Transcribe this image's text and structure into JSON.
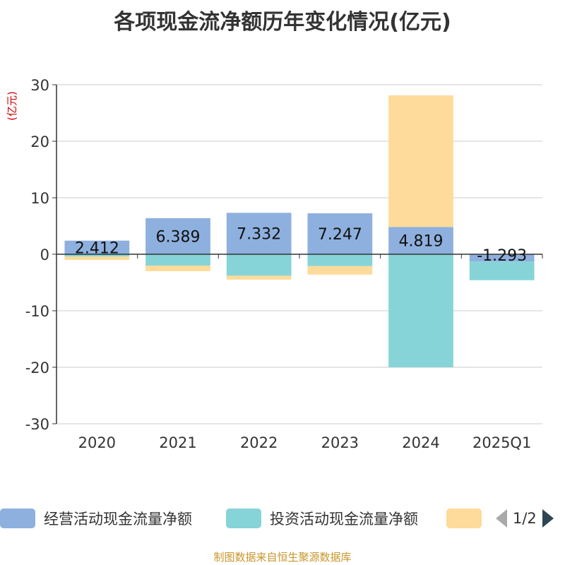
{
  "title": "各项现金流净额历年变化情况(亿元)",
  "source": "制图数据来自恒生聚源数据库",
  "colors": {
    "operating": "#8eb0de",
    "investing": "#86d4d8",
    "financing": "#fedb9a",
    "axis": "#333333",
    "grid": "#cccccc",
    "unit": "#cc0000"
  },
  "legend": {
    "items": [
      "经营活动现金流量净额",
      "投资活动现金流量净额",
      ""
    ],
    "page": "1/2",
    "prev_icon": "chevron-left-icon",
    "next_icon": "chevron-right-icon"
  },
  "chart_data": {
    "type": "bar",
    "stacked": true,
    "unit": "(亿元)",
    "categories": [
      "2020",
      "2021",
      "2022",
      "2023",
      "2024",
      "2025Q1"
    ],
    "ylim": [
      -30,
      30
    ],
    "yticks": [
      30,
      20,
      10,
      0,
      -10,
      -20,
      -30
    ],
    "grid": true,
    "legend_position": "bottom",
    "series": [
      {
        "name": "经营活动现金流量净额",
        "values": [
          2.412,
          6.389,
          7.332,
          7.247,
          4.819,
          -1.293
        ],
        "labels": [
          "2.412",
          "6.389",
          "7.332",
          "7.247",
          "4.819",
          "-1.293"
        ]
      },
      {
        "name": "投资活动现金流量净额",
        "values": [
          -0.4,
          -2.0,
          -3.8,
          -2.1,
          -20.0,
          -3.3
        ]
      },
      {
        "name": "",
        "values": [
          -0.6,
          -1.0,
          -0.7,
          -1.5,
          23.3,
          0
        ]
      }
    ]
  }
}
